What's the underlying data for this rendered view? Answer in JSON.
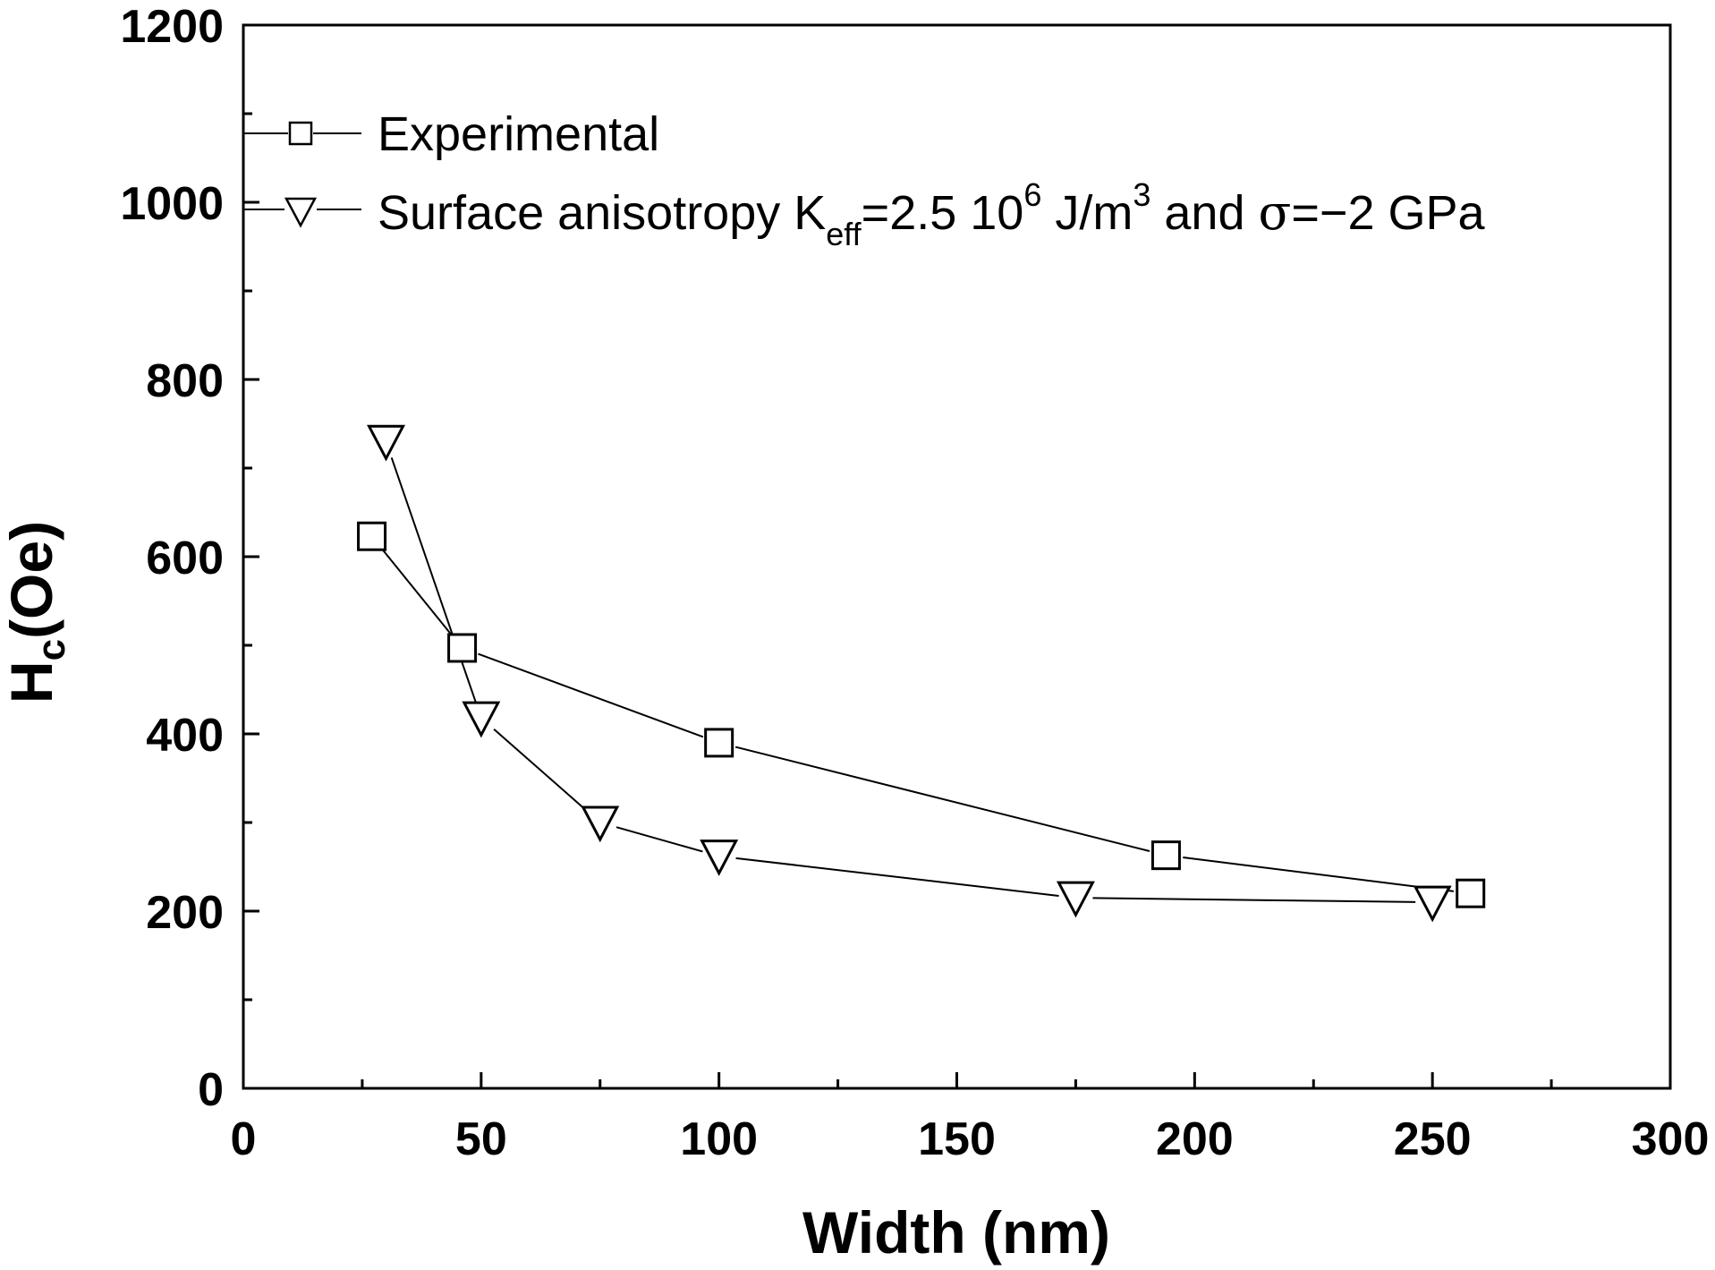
{
  "chart_data": {
    "type": "line",
    "title": "",
    "xlabel": "Width (nm)",
    "ylabel": {
      "main": "H",
      "sub": "c",
      "rest": "(Oe)"
    },
    "xlim": [
      0,
      300
    ],
    "ylim": [
      0,
      1200
    ],
    "xticks": [
      0,
      50,
      100,
      150,
      200,
      250,
      300
    ],
    "yticks": [
      0,
      200,
      400,
      600,
      800,
      1000,
      1200
    ],
    "grid": false,
    "legend_position": "top-left",
    "series": [
      {
        "name": "Experimental",
        "marker": "square",
        "x": [
          27,
          46,
          100,
          194,
          258
        ],
        "y": [
          623,
          497,
          390,
          263,
          220
        ]
      },
      {
        "name": "Surface anisotropy K_eff=2.5 10^6 J/m^3 and σ=−2 GPa",
        "marker": "triangle-down",
        "x": [
          30,
          50,
          75,
          100,
          175,
          250
        ],
        "y": [
          730,
          418,
          300,
          262,
          215,
          210
        ]
      }
    ],
    "legend": {
      "experimental": "Experimental",
      "surface": {
        "p1": "Surface anisotropy K",
        "p1_sub": "eff",
        "p2": "=2.5 10",
        "p2_sup": "6",
        "p3": " J/m",
        "p3_sup": "3",
        "p4": " and ",
        "sigma": "σ",
        "p5": "=−2 GPa"
      }
    }
  }
}
